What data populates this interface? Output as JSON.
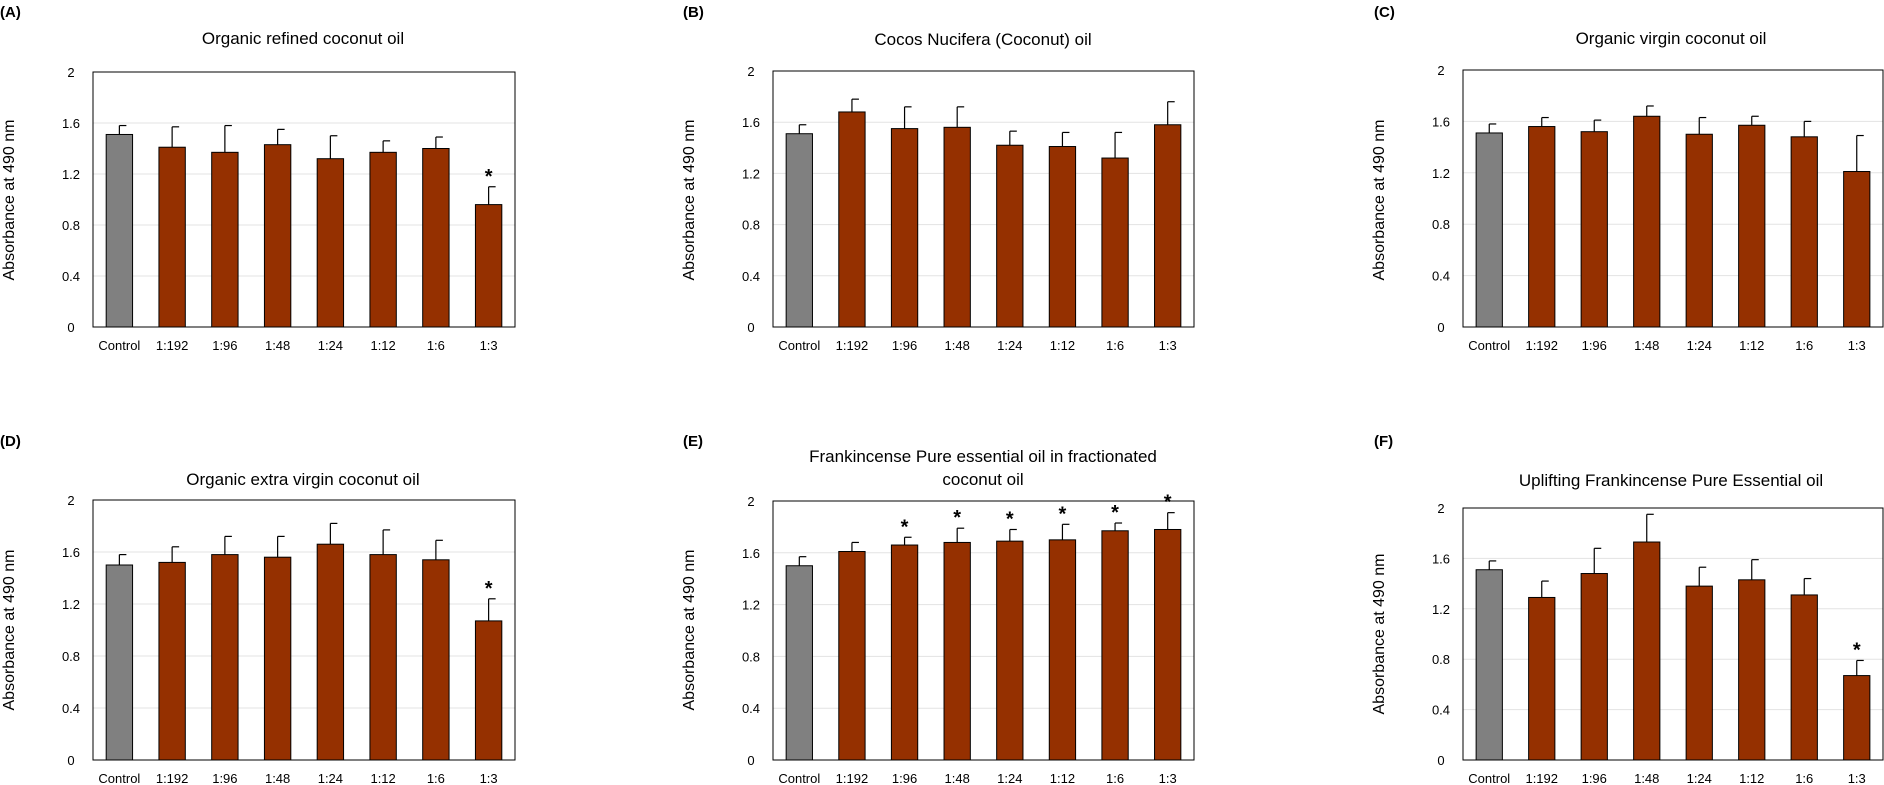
{
  "chart_data": [
    {
      "type": "bar",
      "panel": "(A)",
      "title": "Organic refined coconut oil",
      "ylabel": "Absorbance at 490 nm",
      "ylim": [
        0,
        2
      ],
      "yticks": [
        "0",
        "0.4",
        "0.8",
        "1.2",
        "1.6",
        "2"
      ],
      "categories": [
        "Control",
        "1:192",
        "1:96",
        "1:48",
        "1:24",
        "1:12",
        "1:6",
        "1:3"
      ],
      "values": [
        1.51,
        1.41,
        1.37,
        1.43,
        1.32,
        1.37,
        1.4,
        0.96
      ],
      "errors": [
        0.07,
        0.16,
        0.21,
        0.12,
        0.18,
        0.09,
        0.09,
        0.14
      ],
      "significant": [
        false,
        false,
        false,
        false,
        false,
        false,
        false,
        true
      ],
      "star": "*",
      "colors": {
        "control": "#808080",
        "treatment": "#953000"
      }
    },
    {
      "type": "bar",
      "panel": "(B)",
      "title": "Cocos Nucifera (Coconut) oil",
      "ylabel": "Absorbance at 490 nm",
      "ylim": [
        0,
        2
      ],
      "yticks": [
        "0",
        "0.4",
        "0.8",
        "1.2",
        "1.6",
        "2"
      ],
      "categories": [
        "Control",
        "1:192",
        "1:96",
        "1:48",
        "1:24",
        "1:12",
        "1:6",
        "1:3"
      ],
      "values": [
        1.51,
        1.68,
        1.55,
        1.56,
        1.42,
        1.41,
        1.32,
        1.58
      ],
      "errors": [
        0.07,
        0.1,
        0.17,
        0.16,
        0.11,
        0.11,
        0.2,
        0.18
      ],
      "significant": [
        false,
        false,
        false,
        false,
        false,
        false,
        false,
        false
      ],
      "star": "*",
      "colors": {
        "control": "#808080",
        "treatment": "#953000"
      }
    },
    {
      "type": "bar",
      "panel": "(C)",
      "title": "Organic virgin coconut oil",
      "ylabel": "Absorbance at 490 nm",
      "ylim": [
        0,
        2
      ],
      "yticks": [
        "0",
        "0.4",
        "0.8",
        "1.2",
        "1.6",
        "2"
      ],
      "categories": [
        "Control",
        "1:192",
        "1:96",
        "1:48",
        "1:24",
        "1:12",
        "1:6",
        "1:3"
      ],
      "values": [
        1.51,
        1.56,
        1.52,
        1.64,
        1.5,
        1.57,
        1.48,
        1.21
      ],
      "errors": [
        0.07,
        0.07,
        0.09,
        0.08,
        0.13,
        0.07,
        0.12,
        0.28
      ],
      "significant": [
        false,
        false,
        false,
        false,
        false,
        false,
        false,
        false
      ],
      "star": "*",
      "colors": {
        "control": "#808080",
        "treatment": "#953000"
      }
    },
    {
      "type": "bar",
      "panel": "(D)",
      "title": "Organic extra virgin coconut oil",
      "ylabel": "Absorbance at 490 nm",
      "ylim": [
        0,
        2
      ],
      "yticks": [
        "0",
        "0.4",
        "0.8",
        "1.2",
        "1.6",
        "2"
      ],
      "categories": [
        "Control",
        "1:192",
        "1:96",
        "1:48",
        "1:24",
        "1:12",
        "1:6",
        "1:3"
      ],
      "values": [
        1.5,
        1.52,
        1.58,
        1.56,
        1.66,
        1.58,
        1.54,
        1.07
      ],
      "errors": [
        0.08,
        0.12,
        0.14,
        0.16,
        0.16,
        0.19,
        0.15,
        0.17
      ],
      "significant": [
        false,
        false,
        false,
        false,
        false,
        false,
        false,
        true
      ],
      "star": "*",
      "colors": {
        "control": "#808080",
        "treatment": "#953000"
      }
    },
    {
      "type": "bar",
      "panel": "(E)",
      "title": "Frankincense Pure essential oil in fractionated",
      "title2": "coconut oil",
      "ylabel": "Absorbance at 490 nm",
      "ylim": [
        0,
        2
      ],
      "yticks": [
        "0",
        "0.4",
        "0.8",
        "1.2",
        "1.6",
        "2"
      ],
      "categories": [
        "Control",
        "1:192",
        "1:96",
        "1:48",
        "1:24",
        "1:12",
        "1:6",
        "1:3"
      ],
      "values": [
        1.5,
        1.61,
        1.66,
        1.68,
        1.69,
        1.7,
        1.77,
        1.78
      ],
      "errors": [
        0.07,
        0.07,
        0.06,
        0.11,
        0.09,
        0.12,
        0.06,
        0.13
      ],
      "significant": [
        false,
        false,
        true,
        true,
        true,
        true,
        true,
        true
      ],
      "star": "*",
      "colors": {
        "control": "#808080",
        "treatment": "#953000"
      }
    },
    {
      "type": "bar",
      "panel": "(F)",
      "title": "Uplifting Frankincense Pure Essential oil",
      "ylabel": "Absorbance at 490 nm",
      "ylim": [
        0,
        2
      ],
      "yticks": [
        "0",
        "0.4",
        "0.8",
        "1.2",
        "1.6",
        "2"
      ],
      "categories": [
        "Control",
        "1:192",
        "1:96",
        "1:48",
        "1:24",
        "1:12",
        "1:6",
        "1:3"
      ],
      "values": [
        1.51,
        1.29,
        1.48,
        1.73,
        1.38,
        1.43,
        1.31,
        0.67
      ],
      "errors": [
        0.07,
        0.13,
        0.2,
        0.22,
        0.15,
        0.16,
        0.13,
        0.12
      ],
      "significant": [
        false,
        false,
        false,
        false,
        false,
        false,
        false,
        true
      ],
      "star": "*",
      "colors": {
        "control": "#808080",
        "treatment": "#953000"
      }
    }
  ]
}
